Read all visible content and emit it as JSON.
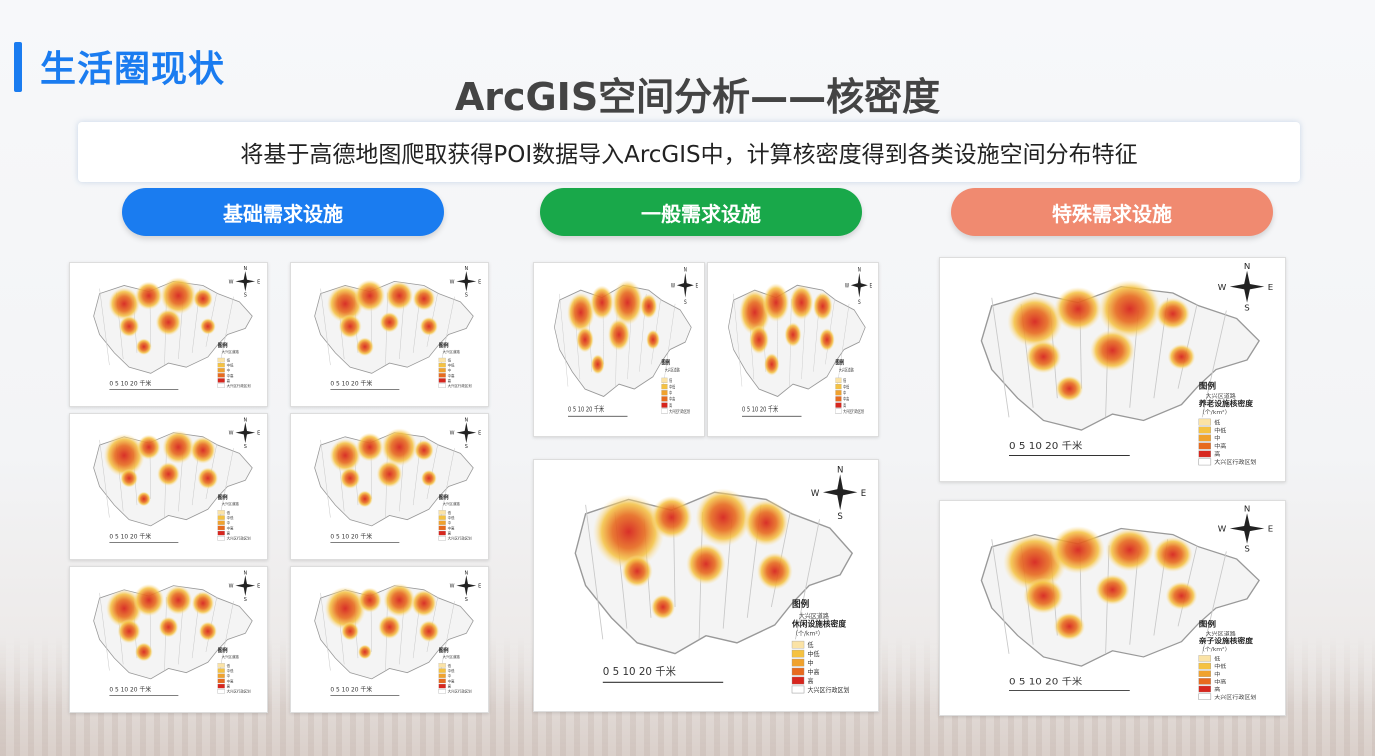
{
  "header": {
    "section_title": "生活圈现状",
    "main_title": "ArcGIS空间分析——核密度",
    "description": "将基于高德地图爬取获得POI数据导入ArcGIS中，计算核密度得到各类设施空间分布特征"
  },
  "categories": [
    {
      "label": "基础需求设施",
      "color": "#1a7cf0"
    },
    {
      "label": "一般需求设施",
      "color": "#19a84a"
    },
    {
      "label": "特殊需求设施",
      "color": "#f08a70"
    }
  ],
  "map_common": {
    "scale_label": "0    5    10        20 千米",
    "legend_heading": "图例",
    "district_label": "大兴区道路",
    "boundary_label": "大兴区行政区划",
    "levels": [
      "低",
      "中低",
      "中",
      "中高",
      "高"
    ],
    "level_colors": [
      "#fbe3a6",
      "#f5c242",
      "#f0a22e",
      "#e76a1e",
      "#d7261e"
    ],
    "compass": {
      "n": "N",
      "s": "S",
      "e": "E",
      "w": "W"
    }
  },
  "maps": {
    "leisure": {
      "legend_title": "休闲设施核密度",
      "unit": "（个/km²）"
    },
    "elderly": {
      "legend_title": "养老设施核密度",
      "unit": "（个/km²）"
    },
    "childcare": {
      "legend_title": "亲子设施核密度",
      "unit": "（个/km²）"
    }
  }
}
